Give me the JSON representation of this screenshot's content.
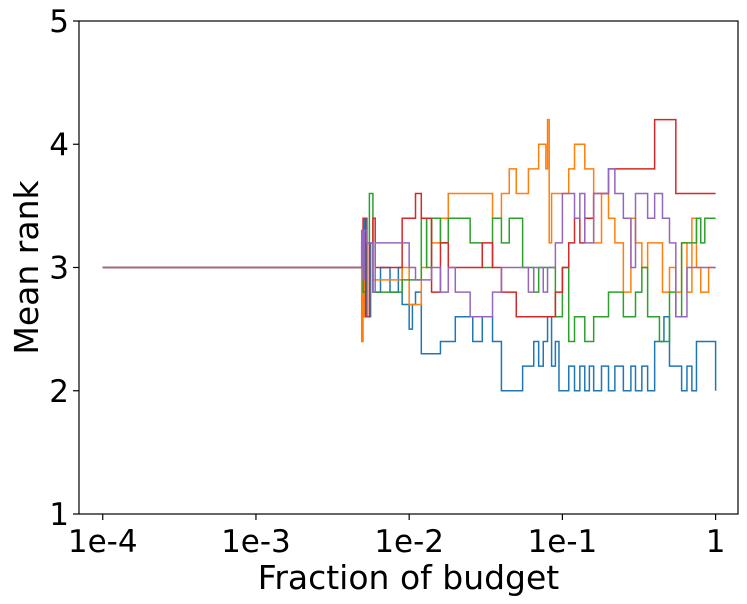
{
  "chart_data": {
    "type": "line",
    "title": "",
    "xlabel": "Fraction of budget",
    "ylabel": "Mean rank",
    "xscale": "log",
    "xlim": [
      7e-05,
      1.4
    ],
    "ylim": [
      1,
      5
    ],
    "xticks": [
      0.0001,
      0.001,
      0.01,
      0.1,
      1
    ],
    "xtick_labels": [
      "1e-4",
      "1e-3",
      "1e-2",
      "1e-1",
      "1"
    ],
    "yticks": [
      1,
      2,
      3,
      4,
      5
    ],
    "ytick_labels": [
      "1",
      "2",
      "3",
      "4",
      "5"
    ],
    "grid": false,
    "legend": "none",
    "series": [
      {
        "color": "#1f77b4",
        "x": [
          0.0001,
          0.0048,
          0.0049,
          0.005,
          0.0051,
          0.0053,
          0.0056,
          0.0058,
          0.0065,
          0.0075,
          0.0085,
          0.009,
          0.0095,
          0.01,
          0.0105,
          0.011,
          0.012,
          0.014,
          0.016,
          0.018,
          0.02,
          0.023,
          0.026,
          0.03,
          0.035,
          0.04,
          0.045,
          0.05,
          0.055,
          0.06,
          0.065,
          0.07,
          0.075,
          0.08,
          0.085,
          0.09,
          0.095,
          0.1,
          0.11,
          0.12,
          0.13,
          0.14,
          0.15,
          0.16,
          0.18,
          0.2,
          0.22,
          0.25,
          0.28,
          0.3,
          0.33,
          0.36,
          0.4,
          0.43,
          0.46,
          0.5,
          0.55,
          0.6,
          0.65,
          0.7,
          0.75,
          0.8,
          1.0
        ],
        "y": [
          3.0,
          3.0,
          3.2,
          2.8,
          3.4,
          2.6,
          3.2,
          2.8,
          3.0,
          2.8,
          3.0,
          2.7,
          2.7,
          2.5,
          2.7,
          2.8,
          2.3,
          2.3,
          2.4,
          2.4,
          2.6,
          2.6,
          2.4,
          2.6,
          2.4,
          2.0,
          2.0,
          2.0,
          2.2,
          2.2,
          2.4,
          2.2,
          2.4,
          2.6,
          2.2,
          2.4,
          2.0,
          2.0,
          2.2,
          2.0,
          2.2,
          2.0,
          2.2,
          2.0,
          2.2,
          2.0,
          2.2,
          2.0,
          2.2,
          2.0,
          2.2,
          2.0,
          2.4,
          2.4,
          2.6,
          2.2,
          2.2,
          2.0,
          2.2,
          2.0,
          2.4,
          2.4,
          2.0
        ]
      },
      {
        "color": "#ff7f0e",
        "x": [
          0.0001,
          0.0048,
          0.0049,
          0.005,
          0.0051,
          0.0053,
          0.0055,
          0.0058,
          0.006,
          0.007,
          0.008,
          0.009,
          0.01,
          0.011,
          0.012,
          0.013,
          0.014,
          0.016,
          0.018,
          0.02,
          0.025,
          0.03,
          0.035,
          0.04,
          0.045,
          0.05,
          0.055,
          0.06,
          0.07,
          0.075,
          0.078,
          0.08,
          0.082,
          0.085,
          0.09,
          0.1,
          0.11,
          0.12,
          0.13,
          0.14,
          0.16,
          0.18,
          0.2,
          0.22,
          0.25,
          0.28,
          0.3,
          0.33,
          0.36,
          0.4,
          0.45,
          0.5,
          0.55,
          0.6,
          0.65,
          0.7,
          0.75,
          0.8,
          0.9,
          1.0
        ],
        "y": [
          3.0,
          3.0,
          2.4,
          3.3,
          2.6,
          2.6,
          3.2,
          2.9,
          2.9,
          2.9,
          2.9,
          3.0,
          2.7,
          2.7,
          3.0,
          3.4,
          3.2,
          3.4,
          3.6,
          3.6,
          3.6,
          3.6,
          3.4,
          3.6,
          3.8,
          3.6,
          3.6,
          3.8,
          4.0,
          4.0,
          3.8,
          4.2,
          3.2,
          3.6,
          3.6,
          3.6,
          3.8,
          4.0,
          4.0,
          3.8,
          3.2,
          3.6,
          3.4,
          3.2,
          2.8,
          3.4,
          3.2,
          3.0,
          3.2,
          3.2,
          2.8,
          3.0,
          2.8,
          3.2,
          2.8,
          3.4,
          3.0,
          2.8,
          3.0,
          3.0
        ]
      },
      {
        "color": "#2ca02c",
        "x": [
          0.0001,
          0.0048,
          0.005,
          0.0052,
          0.0055,
          0.0058,
          0.006,
          0.007,
          0.008,
          0.009,
          0.01,
          0.012,
          0.013,
          0.014,
          0.016,
          0.018,
          0.02,
          0.025,
          0.03,
          0.035,
          0.04,
          0.045,
          0.05,
          0.055,
          0.06,
          0.065,
          0.07,
          0.08,
          0.09,
          0.1,
          0.11,
          0.12,
          0.13,
          0.14,
          0.16,
          0.18,
          0.2,
          0.22,
          0.25,
          0.3,
          0.33,
          0.36,
          0.4,
          0.43,
          0.46,
          0.5,
          0.55,
          0.6,
          0.7,
          0.75,
          0.8,
          0.85,
          1.0
        ],
        "y": [
          3.0,
          3.0,
          2.8,
          3.2,
          3.6,
          2.8,
          2.8,
          2.8,
          2.8,
          2.9,
          2.9,
          3.4,
          3.0,
          3.4,
          3.2,
          3.4,
          3.4,
          3.2,
          3.0,
          3.4,
          3.2,
          3.4,
          3.4,
          3.0,
          3.0,
          2.8,
          3.0,
          3.0,
          2.6,
          3.0,
          2.4,
          2.6,
          2.6,
          2.4,
          2.6,
          2.6,
          2.8,
          2.8,
          2.6,
          2.8,
          3.0,
          2.6,
          2.6,
          2.4,
          2.4,
          2.8,
          2.6,
          3.2,
          3.2,
          3.4,
          3.2,
          3.4,
          3.4
        ]
      },
      {
        "color": "#d62728",
        "x": [
          0.0001,
          0.0048,
          0.005,
          0.0052,
          0.0055,
          0.0058,
          0.006,
          0.007,
          0.0085,
          0.009,
          0.01,
          0.011,
          0.012,
          0.014,
          0.016,
          0.018,
          0.02,
          0.025,
          0.03,
          0.035,
          0.04,
          0.045,
          0.05,
          0.06,
          0.07,
          0.08,
          0.09,
          0.1,
          0.11,
          0.12,
          0.13,
          0.14,
          0.16,
          0.18,
          0.2,
          0.25,
          0.3,
          0.35,
          0.4,
          0.45,
          0.5,
          0.55,
          1.0
        ],
        "y": [
          3.0,
          3.0,
          3.4,
          2.6,
          3.2,
          3.4,
          3.0,
          3.0,
          3.0,
          3.4,
          3.4,
          3.6,
          3.4,
          2.8,
          3.2,
          3.0,
          3.0,
          3.0,
          3.2,
          3.0,
          2.8,
          2.8,
          2.6,
          2.6,
          2.6,
          2.6,
          2.8,
          3.0,
          3.2,
          3.4,
          3.2,
          3.4,
          3.6,
          3.6,
          3.8,
          3.8,
          3.8,
          3.8,
          4.2,
          4.2,
          4.2,
          3.6,
          3.6
        ]
      },
      {
        "color": "#9467bd",
        "x": [
          0.0001,
          0.0048,
          0.0049,
          0.005,
          0.0051,
          0.0053,
          0.0056,
          0.0058,
          0.006,
          0.007,
          0.008,
          0.009,
          0.01,
          0.011,
          0.012,
          0.014,
          0.016,
          0.018,
          0.02,
          0.025,
          0.03,
          0.035,
          0.04,
          0.045,
          0.05,
          0.06,
          0.065,
          0.07,
          0.075,
          0.08,
          0.09,
          0.1,
          0.11,
          0.12,
          0.13,
          0.14,
          0.16,
          0.18,
          0.2,
          0.22,
          0.25,
          0.28,
          0.3,
          0.33,
          0.36,
          0.4,
          0.45,
          0.5,
          0.55,
          0.6,
          0.65,
          0.7,
          0.8,
          1.0
        ],
        "y": [
          3.0,
          3.0,
          3.3,
          2.9,
          3.3,
          3.2,
          3.2,
          2.8,
          3.2,
          3.2,
          3.2,
          3.2,
          3.0,
          2.9,
          2.9,
          3.0,
          2.8,
          3.0,
          2.8,
          2.6,
          2.6,
          2.8,
          3.0,
          3.0,
          3.0,
          2.8,
          3.0,
          3.0,
          2.8,
          3.0,
          3.2,
          3.6,
          3.6,
          3.4,
          3.6,
          3.2,
          3.6,
          3.6,
          3.8,
          3.6,
          3.4,
          3.0,
          3.6,
          3.6,
          3.4,
          3.6,
          3.4,
          3.2,
          2.6,
          2.6,
          3.0,
          3.0,
          3.0,
          3.0
        ]
      }
    ]
  }
}
